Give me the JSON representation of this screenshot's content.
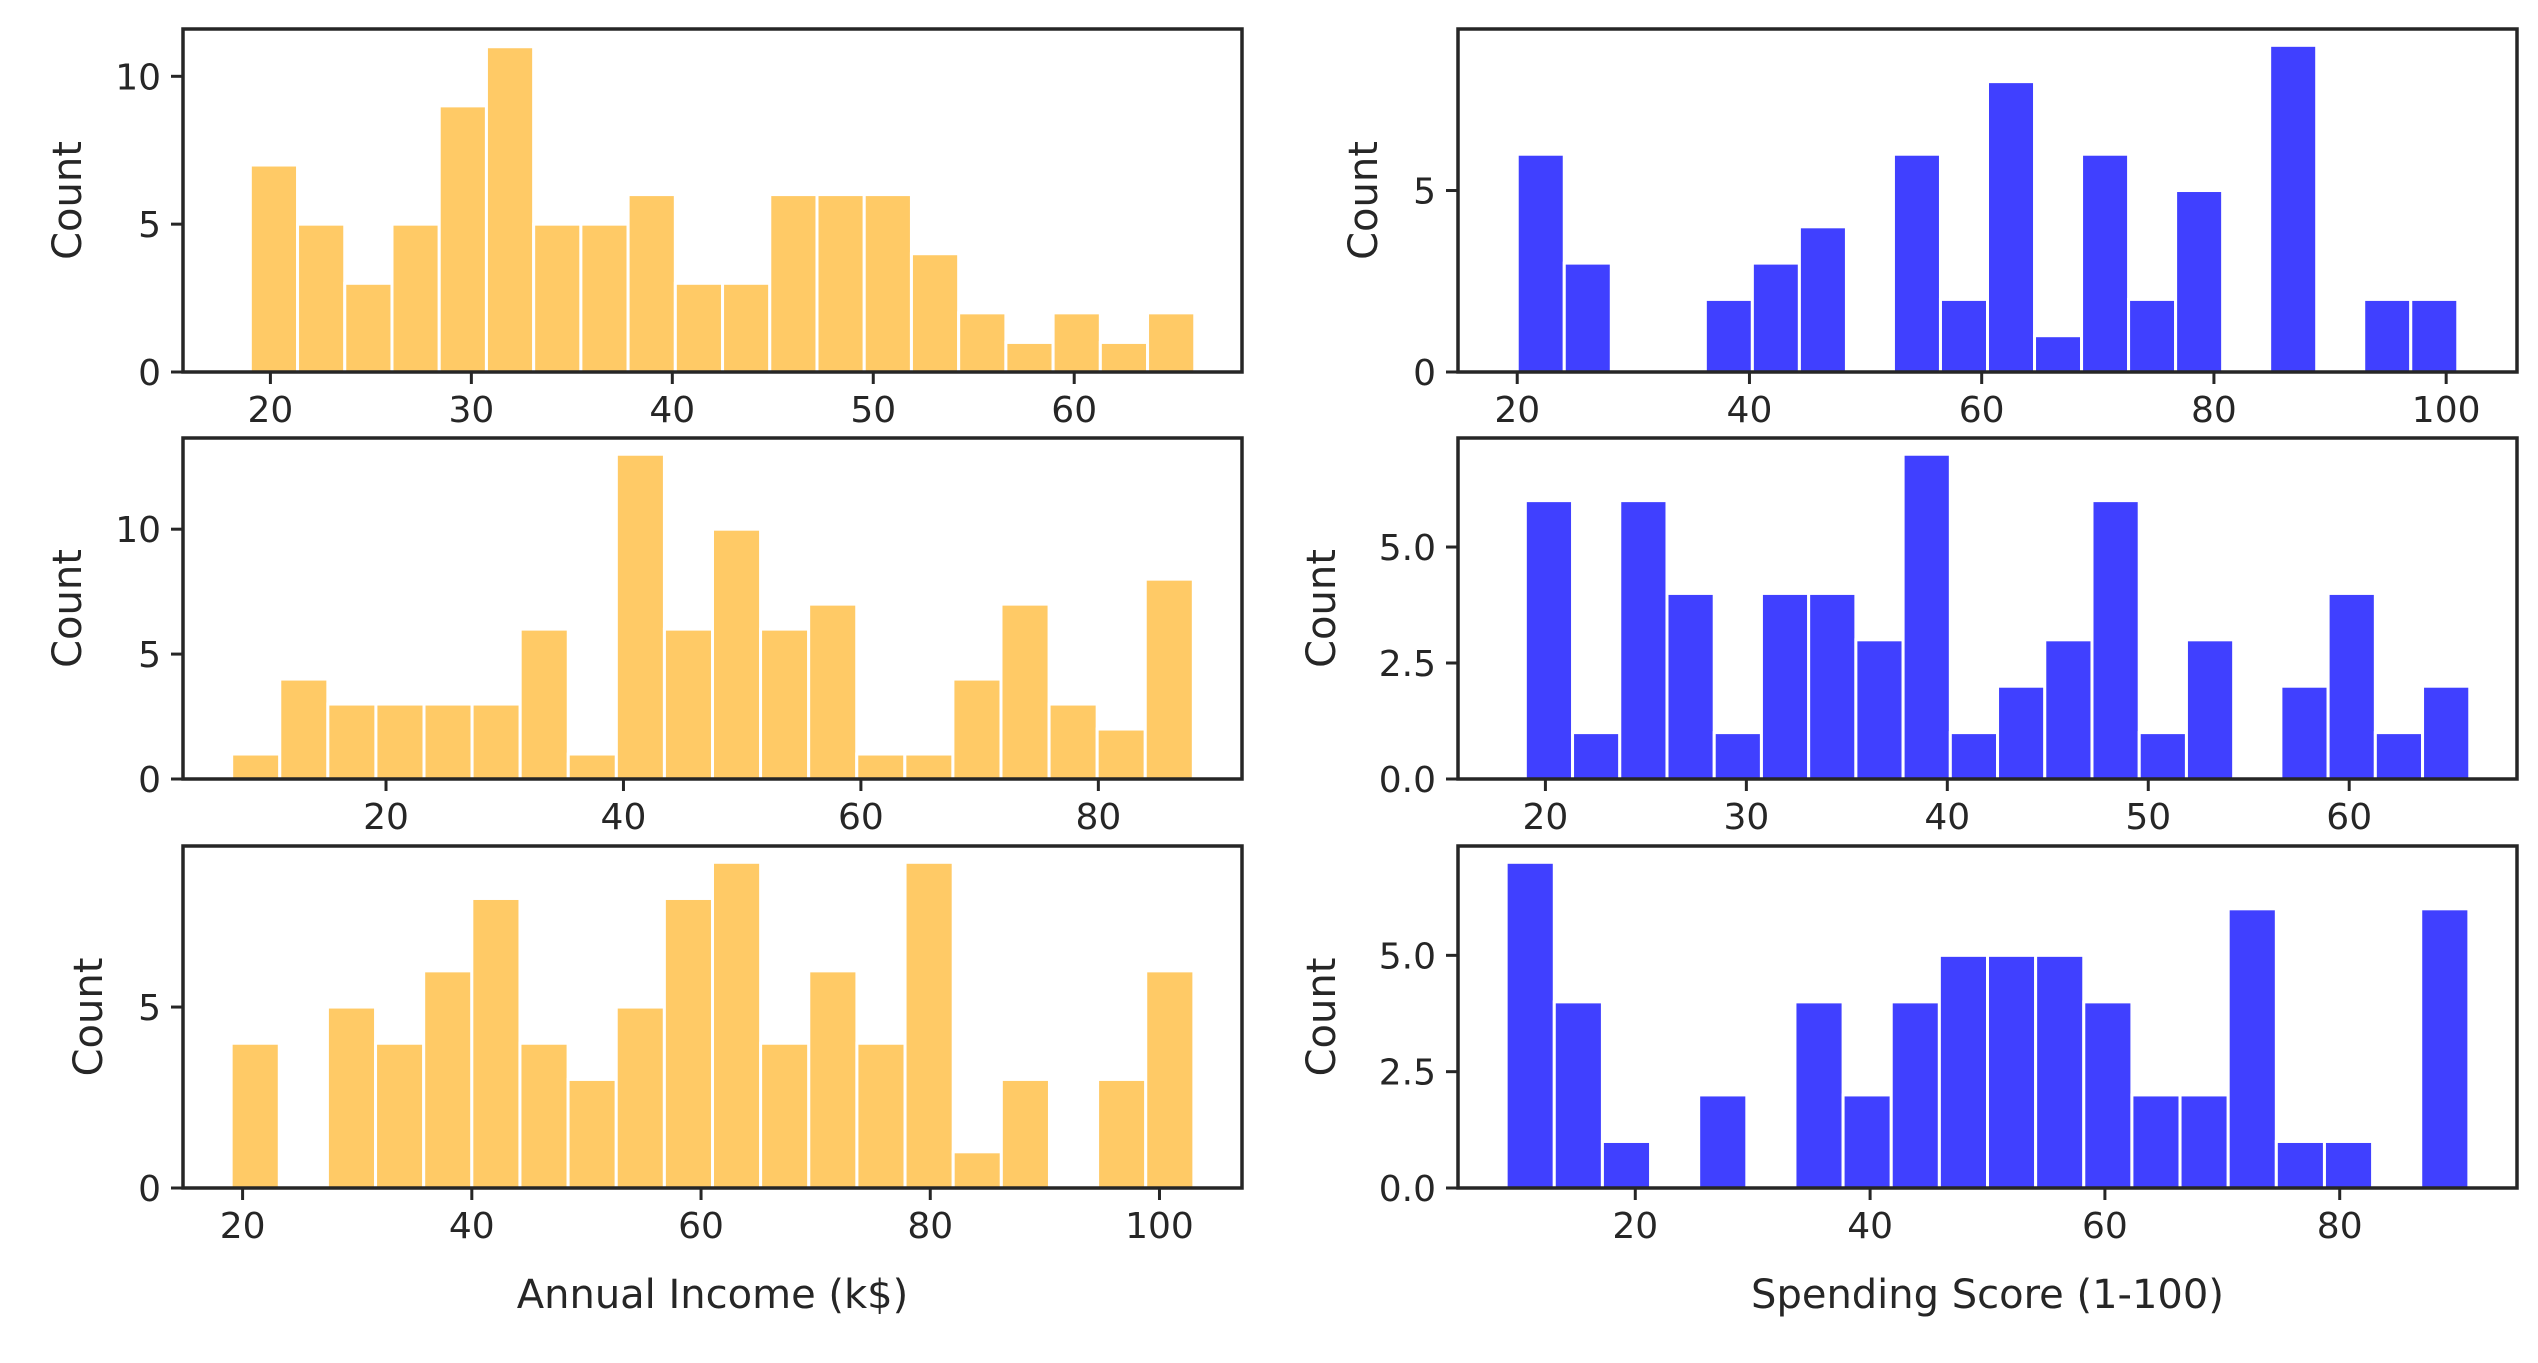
{
  "chart_data": [
    {
      "type": "histogram",
      "xlabel": "",
      "ylabel": "Count",
      "color": "#FFB833",
      "xlim": [
        15.65,
        68.35
      ],
      "ylim": [
        0,
        11.6
      ],
      "xticks": [
        20,
        30,
        40,
        50,
        60
      ],
      "yticks": [
        0,
        5,
        10
      ],
      "bin_width": 2.35,
      "bin_start": 19,
      "counts": [
        7,
        5,
        3,
        5,
        9,
        11,
        5,
        5,
        6,
        3,
        3,
        6,
        6,
        6,
        4,
        2,
        1,
        2,
        1,
        2
      ]
    },
    {
      "type": "histogram",
      "xlabel": "",
      "ylabel": "Count",
      "color": "#0000FF",
      "xlim": [
        14.9,
        106.1
      ],
      "ylim": [
        0,
        9.45
      ],
      "xticks": [
        20,
        40,
        60,
        80,
        100
      ],
      "yticks": [
        0,
        5
      ],
      "bin_width": 4.05,
      "bin_start": 20,
      "counts": [
        6,
        3,
        0,
        0,
        2,
        3,
        4,
        0,
        6,
        2,
        8,
        1,
        6,
        2,
        5,
        0,
        9,
        0,
        2,
        2
      ]
    },
    {
      "type": "histogram",
      "xlabel": "",
      "ylabel": "Count",
      "color": "#FFB833",
      "xlim": [
        2.9,
        92.1
      ],
      "ylim": [
        0,
        13.65
      ],
      "xticks": [
        20,
        40,
        60,
        80
      ],
      "yticks": [
        0,
        5,
        10
      ],
      "bin_width": 4.05,
      "bin_start": 7,
      "counts": [
        1,
        4,
        3,
        3,
        3,
        3,
        6,
        1,
        13,
        6,
        10,
        6,
        7,
        1,
        1,
        4,
        7,
        3,
        2,
        8
      ]
    },
    {
      "type": "histogram",
      "xlabel": "",
      "ylabel": "Count",
      "color": "#0000FF",
      "xlim": [
        15.65,
        68.35
      ],
      "ylim": [
        0,
        7.35
      ],
      "xticks": [
        20,
        30,
        40,
        50,
        60
      ],
      "yticks": [
        0.0,
        2.5,
        5.0
      ],
      "bin_width": 2.35,
      "bin_start": 19,
      "counts": [
        6,
        1,
        6,
        4,
        1,
        4,
        4,
        3,
        7,
        1,
        2,
        3,
        6,
        1,
        3,
        0,
        2,
        4,
        1,
        2
      ]
    },
    {
      "type": "histogram",
      "xlabel": "Annual Income (k$)",
      "ylabel": "Count",
      "color": "#FFB833",
      "xlim": [
        14.8,
        107.2
      ],
      "ylim": [
        0,
        9.45
      ],
      "xticks": [
        20,
        40,
        60,
        80,
        100
      ],
      "yticks": [
        0,
        5
      ],
      "bin_width": 4.2,
      "bin_start": 19,
      "counts": [
        4,
        0,
        5,
        4,
        6,
        8,
        4,
        3,
        5,
        8,
        9,
        4,
        6,
        4,
        9,
        1,
        3,
        0,
        3,
        6
      ]
    },
    {
      "type": "histogram",
      "xlabel": "Spending Score (1-100)",
      "ylabel": "Count",
      "color": "#0000FF",
      "xlim": [
        4.9,
        95.1
      ],
      "ylim": [
        0,
        7.35
      ],
      "xticks": [
        20,
        40,
        60,
        80
      ],
      "yticks": [
        0.0,
        2.5,
        5.0
      ],
      "bin_width": 4.1,
      "bin_start": 9,
      "counts": [
        7,
        4,
        1,
        0,
        2,
        0,
        4,
        2,
        4,
        5,
        5,
        5,
        4,
        2,
        2,
        6,
        1,
        1,
        0,
        6
      ]
    }
  ]
}
